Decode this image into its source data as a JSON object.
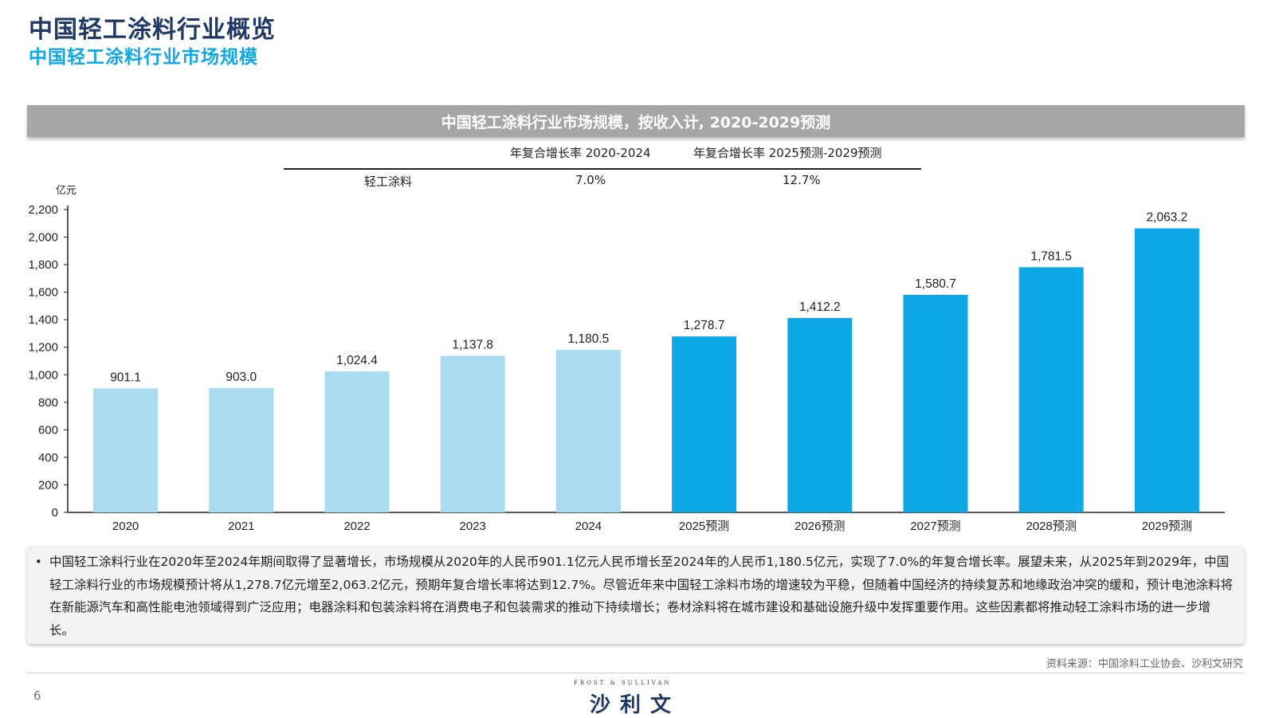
{
  "header": {
    "title": "中国轻工涂料行业概览",
    "subtitle": "中国轻工涂料行业市场规模"
  },
  "colors": {
    "historical": "#a9dcf0",
    "forecast": "#0ea8e6",
    "title": "#1f3864",
    "subtitle": "#0ea8e6"
  },
  "cagr_table": {
    "col1_header": "年复合增长率 2020-2024",
    "col2_header": "年复合增长率 2025预测-2029预测",
    "row_label": "轻工涂料",
    "col1_value": "7.0%",
    "col2_value": "12.7%"
  },
  "chart_data": {
    "type": "bar",
    "title": "中国轻工涂料行业市场规模，按收入计, 2020-2029预测",
    "ylabel": "亿元",
    "ylim": [
      0,
      2200
    ],
    "yticks": [
      0,
      200,
      400,
      600,
      800,
      1000,
      1200,
      1400,
      1600,
      1800,
      2000,
      2200
    ],
    "categories": [
      "2020",
      "2021",
      "2022",
      "2023",
      "2024",
      "2025预测",
      "2026预测",
      "2027预测",
      "2028预测",
      "2029预测"
    ],
    "values": [
      901.1,
      903.0,
      1024.4,
      1137.8,
      1180.5,
      1278.7,
      1412.2,
      1580.7,
      1781.5,
      2063.2
    ],
    "value_labels": [
      "901.1",
      "903.0",
      "1,024.4",
      "1,137.8",
      "1,180.5",
      "1,278.7",
      "1,412.2",
      "1,580.7",
      "1,781.5",
      "2,063.2"
    ],
    "forecast_flags": [
      false,
      false,
      false,
      false,
      false,
      true,
      true,
      true,
      true,
      true
    ],
    "grid": false,
    "legend": "none"
  },
  "summary": {
    "text": "中国轻工涂料行业在2020年至2024年期间取得了显著增长，市场规模从2020年的人民币901.1亿元人民币增长至2024年的人民币1,180.5亿元，实现了7.0%的年复合增长率。展望未来，从2025年到2029年，中国轻工涂料行业的市场规模预计将从1,278.7亿元增至2,063.2亿元，预期年复合增长率将达到12.7%。尽管近年来中国轻工涂料市场的增速较为平稳，但随着中国经济的持续复苏和地缘政治冲突的缓和，预计电池涂料将在新能源汽车和高性能电池领域得到广泛应用；电器涂料和包装涂料将在消费电子和包装需求的推动下持续增长；卷材涂料将在城市建设和基础设施升级中发挥重要作用。这些因素都将推动轻工涂料市场的进一步增长。"
  },
  "footer": {
    "source": "资料来源：中国涂料工业协会、沙利文研究",
    "page_number": "6",
    "logo_top": "FROST & SULLIVAN",
    "logo_main": "沙利文"
  }
}
